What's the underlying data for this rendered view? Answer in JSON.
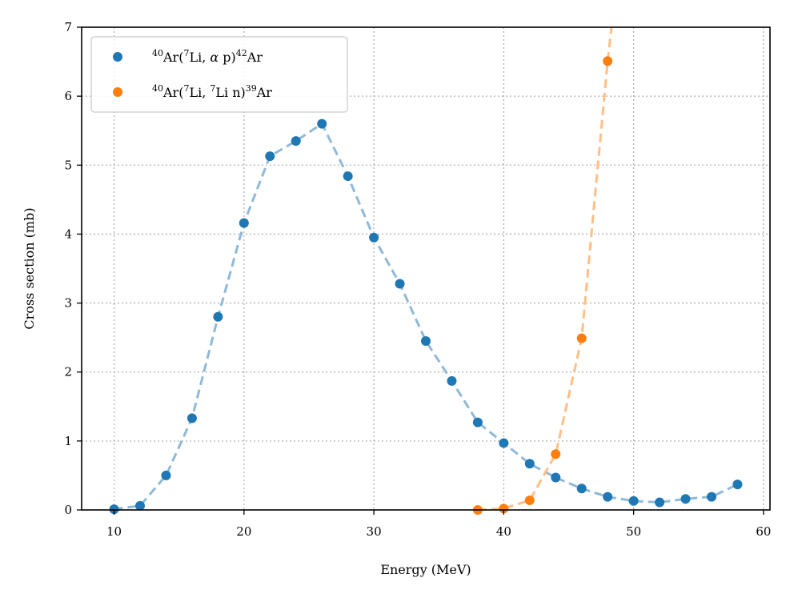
{
  "chart_data": {
    "type": "scatter",
    "title": "",
    "xlabel": "Energy (MeV)",
    "ylabel": "Cross section (mb)",
    "xlim": [
      7.5,
      60.5
    ],
    "ylim": [
      0,
      7
    ],
    "xticks": [
      10,
      20,
      30,
      40,
      50,
      60
    ],
    "yticks": [
      0,
      1,
      2,
      3,
      4,
      5,
      6,
      7
    ],
    "grid": true,
    "legend_position": "top-left",
    "series": [
      {
        "name": "40Ar(7Li, α p)42Ar",
        "legend": {
          "iso1": "40",
          "a": "Ar(",
          "iso2": "7",
          "b": "Li, ",
          "c": "α",
          "d": " p)",
          "iso3": "42",
          "e": "Ar"
        },
        "color": "#1f77b4",
        "fit_color": "#8fb9d7",
        "x": [
          10,
          12,
          14,
          16,
          18,
          20,
          22,
          24,
          26,
          28,
          30,
          32,
          34,
          36,
          38,
          40,
          42,
          44,
          46,
          48,
          50,
          52,
          54,
          56,
          58
        ],
        "y": [
          0.01,
          0.06,
          0.5,
          1.33,
          2.8,
          4.16,
          5.13,
          5.35,
          5.6,
          4.84,
          3.95,
          3.28,
          2.45,
          1.87,
          1.27,
          0.97,
          0.67,
          0.47,
          0.31,
          0.19,
          0.13,
          0.11,
          0.16,
          0.19,
          0.37
        ]
      },
      {
        "name": "40Ar(7Li, 7Li n)39Ar",
        "legend": {
          "iso1": "40",
          "a": "Ar(",
          "iso2": "7",
          "b": "Li, ",
          "iso3": "7",
          "c": "Li n)",
          "iso4": "39",
          "d": "Ar"
        },
        "color": "#ff7f0e",
        "fit_color": "#ffbf86",
        "x": [
          38,
          40,
          42,
          44,
          46,
          48
        ],
        "y": [
          0.0,
          0.02,
          0.14,
          0.81,
          2.49,
          6.51
        ],
        "fit_x": [
          38,
          40,
          42,
          44,
          46,
          48,
          48.3
        ],
        "fit_y": [
          0.0,
          0.02,
          0.14,
          0.81,
          2.49,
          6.51,
          7.0
        ]
      }
    ]
  }
}
